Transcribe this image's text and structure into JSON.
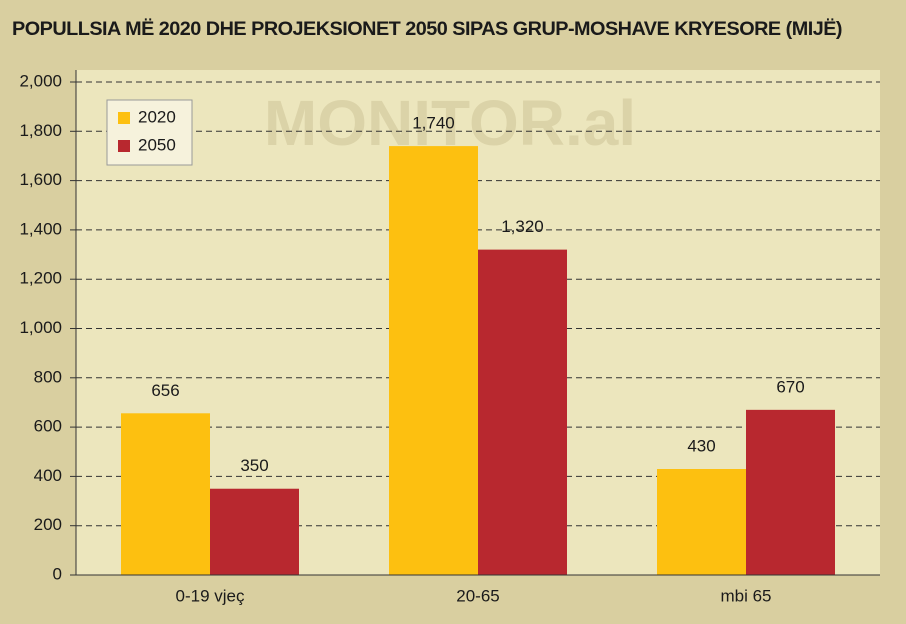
{
  "chart_data": {
    "type": "bar",
    "title": "POPULLSIA MË 2020 DHE PROJEKSIONET 2050 SIPAS GRUP-MOSHAVE KRYESORE (MIJË)",
    "watermark": "MONITOR.al",
    "categories": [
      "0-19 vjeç",
      "20-65",
      "mbi 65"
    ],
    "series": [
      {
        "name": "2020",
        "color": "#fdc010",
        "values": [
          656,
          1740,
          430
        ],
        "value_labels": [
          "656",
          "1,740",
          "430"
        ]
      },
      {
        "name": "2050",
        "color": "#b8282f",
        "values": [
          350,
          1320,
          670
        ],
        "value_labels": [
          "350",
          "1,320",
          "670"
        ]
      }
    ],
    "ylim": [
      0,
      2000
    ],
    "yticks": [
      0,
      200,
      400,
      600,
      800,
      {
        "value": 1000,
        "label": "1,000"
      },
      {
        "value": 1200,
        "label": "1,200"
      },
      {
        "value": 1400,
        "label": "1,400"
      },
      {
        "value": 1600,
        "label": "1,600"
      },
      {
        "value": 1800,
        "label": "1,800"
      },
      {
        "value": 2000,
        "label": "2,000"
      }
    ],
    "grid": true,
    "legend": "top-left"
  }
}
